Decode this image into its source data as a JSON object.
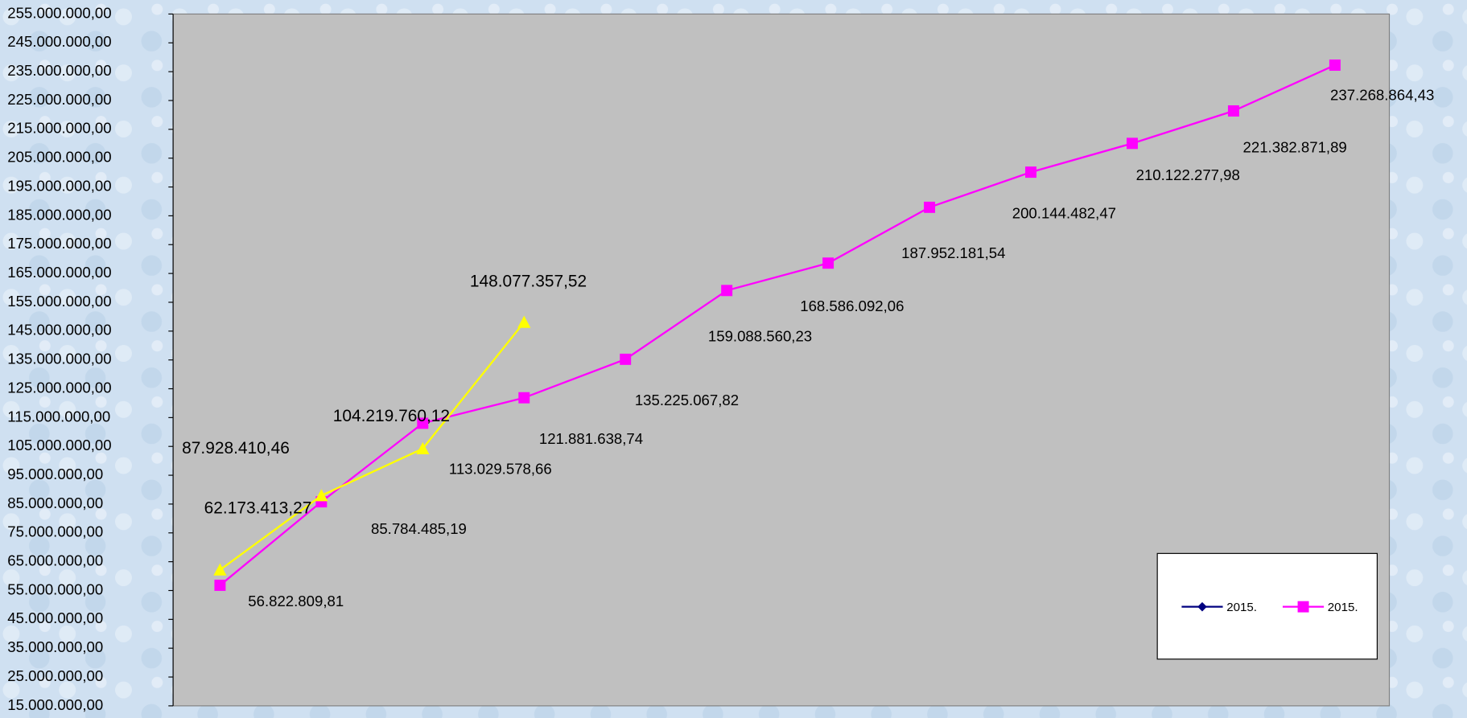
{
  "chart_data": {
    "type": "line",
    "categories": [
      null,
      null,
      null,
      null,
      null,
      null,
      null,
      null,
      null,
      null,
      null,
      null
    ],
    "series": [
      {
        "name": "2015.",
        "color": "#000080",
        "marker": "diamond",
        "values": [
          null,
          null,
          null,
          null,
          null,
          null,
          null,
          null,
          null,
          null,
          null,
          null
        ]
      },
      {
        "name": "2015.",
        "color": "#ff00ff",
        "marker": "square",
        "values": [
          56822809.81,
          85784485.19,
          113029578.66,
          121881638.74,
          135225067.82,
          159088560.23,
          168586092.06,
          187952181.54,
          200144482.47,
          210122277.98,
          221382871.89,
          237268864.43
        ],
        "value_labels": [
          "56.822.809,81",
          "85.784.485,19",
          "113.029.578,66",
          "121.881.638,74",
          "135.225.067,82",
          "159.088.560,23",
          "168.586.092,06",
          "187.952.181,54",
          "200.144.482,47",
          "210.122.277,98",
          "221.382.871,89",
          "237.268.864,43"
        ]
      },
      {
        "color": "#ffff00",
        "marker": "triangle",
        "values": [
          62173413.27,
          87928410.46,
          104219760.12,
          148077357.52,
          null,
          null,
          null,
          null,
          null,
          null,
          null,
          null
        ],
        "value_labels": [
          "62.173.413,27",
          "87.928.410,46",
          "104.219.760,12",
          "148.077.357,52",
          null,
          null,
          null,
          null,
          null,
          null,
          null,
          null
        ]
      }
    ],
    "ylim": [
      15000000,
      255000000
    ],
    "yticks": [
      {
        "value": 15000000,
        "label": "15.000.000,00"
      },
      {
        "value": 25000000,
        "label": "25.000.000,00"
      },
      {
        "value": 35000000,
        "label": "35.000.000,00"
      },
      {
        "value": 45000000,
        "label": "45.000.000,00"
      },
      {
        "value": 55000000,
        "label": "55.000.000,00"
      },
      {
        "value": 65000000,
        "label": "65.000.000,00"
      },
      {
        "value": 75000000,
        "label": "75.000.000,00"
      },
      {
        "value": 85000000,
        "label": "85.000.000,00"
      },
      {
        "value": 95000000,
        "label": "95.000.000,00"
      },
      {
        "value": 105000000,
        "label": "105.000.000,00"
      },
      {
        "value": 115000000,
        "label": "115.000.000,00"
      },
      {
        "value": 125000000,
        "label": "125.000.000,00"
      },
      {
        "value": 135000000,
        "label": "135.000.000,00"
      },
      {
        "value": 145000000,
        "label": "145.000.000,00"
      },
      {
        "value": 155000000,
        "label": "155.000.000,00"
      },
      {
        "value": 165000000,
        "label": "165.000.000,00"
      },
      {
        "value": 175000000,
        "label": "175.000.000,00"
      },
      {
        "value": 185000000,
        "label": "185.000.000,00"
      },
      {
        "value": 195000000,
        "label": "195.000.000,00"
      },
      {
        "value": 205000000,
        "label": "205.000.000,00"
      },
      {
        "value": 215000000,
        "label": "215.000.000,00"
      },
      {
        "value": 225000000,
        "label": "225.000.000,00"
      },
      {
        "value": 235000000,
        "label": "235.000.000,00"
      },
      {
        "value": 245000000,
        "label": "245.000.000,00"
      },
      {
        "value": 255000000,
        "label": "255.000.000,00"
      }
    ],
    "grid": false,
    "legend": "bottom-right"
  }
}
